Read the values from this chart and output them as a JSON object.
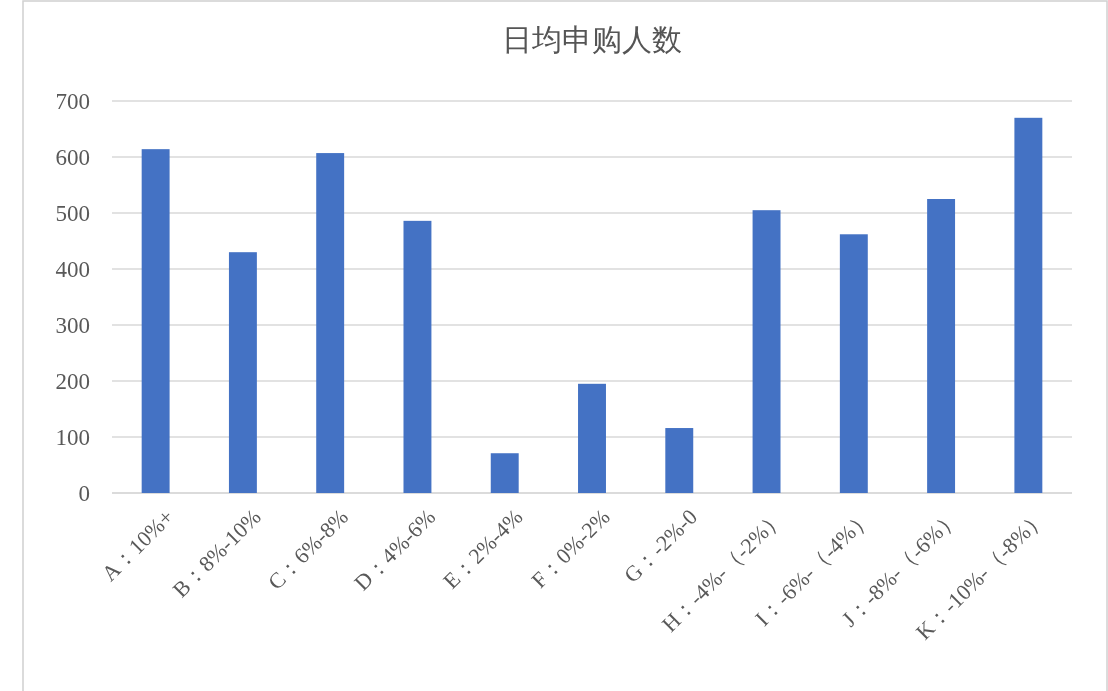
{
  "chart_data": {
    "type": "bar",
    "title": "日均申购人数",
    "categories": [
      "A：10%+",
      "B：8%-10%",
      "C：6%-8%",
      "D：4%-6%",
      "E：2%-4%",
      "F：0%-2%",
      "G：-2%-0",
      "H：-4%-（-2%）",
      "I：-6%-（-4%）",
      "J：-8%-（-6%）",
      "K：-10%-（-8%）"
    ],
    "values": [
      614,
      430,
      607,
      486,
      71,
      195,
      116,
      505,
      462,
      525,
      670
    ],
    "color": "#4472c4",
    "ylim": [
      0,
      700
    ],
    "yticks": [
      0,
      100,
      200,
      300,
      400,
      500,
      600,
      700
    ],
    "grid": "y"
  }
}
